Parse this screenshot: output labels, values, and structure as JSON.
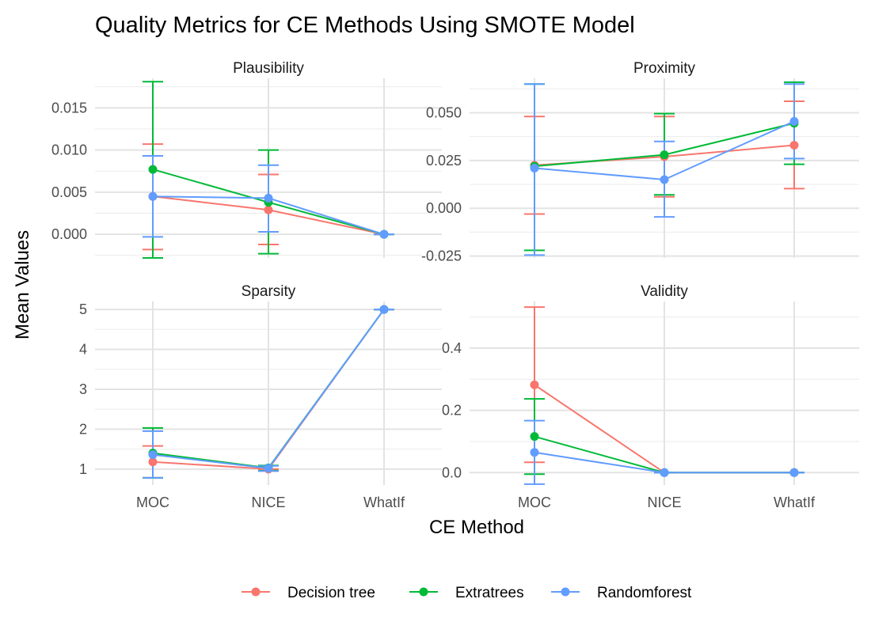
{
  "chart_data": {
    "type": "line",
    "title": "Quality Metrics for CE Methods Using SMOTE Model",
    "xlabel": "CE Method",
    "ylabel": "Mean Values",
    "categories": [
      "MOC",
      "NICE",
      "WhatIf"
    ],
    "legend_position": "bottom",
    "grid": true,
    "series_meta": [
      {
        "name": "Decision tree",
        "color": "#F8766D"
      },
      {
        "name": "Extratrees",
        "color": "#00BA38"
      },
      {
        "name": "Randomforest",
        "color": "#619CFF"
      }
    ],
    "panels": [
      {
        "title": "Plausibility",
        "ylim": [
          -0.0028,
          0.0185
        ],
        "ticks": [
          0.0,
          0.005,
          0.01,
          0.015
        ],
        "tick_labels": [
          "0.000",
          "0.005",
          "0.010",
          "0.015"
        ],
        "series": [
          {
            "name": "Decision tree",
            "values": [
              0.0045,
              0.0029,
              0.0
            ],
            "err_low": [
              -0.0018,
              -0.0012,
              0.0
            ],
            "err_high": [
              0.0107,
              0.0071,
              0.0
            ]
          },
          {
            "name": "Extratrees",
            "values": [
              0.0077,
              0.0038,
              0.0
            ],
            "err_low": [
              -0.0028,
              -0.0023,
              0.0
            ],
            "err_high": [
              0.0181,
              0.01,
              0.0
            ]
          },
          {
            "name": "Randomforest",
            "values": [
              0.0045,
              0.0043,
              0.0
            ],
            "err_low": [
              -0.0003,
              0.0003,
              0.0
            ],
            "err_high": [
              0.0093,
              0.0082,
              0.0
            ]
          }
        ]
      },
      {
        "title": "Proximity",
        "ylim": [
          -0.026,
          0.068
        ],
        "ticks": [
          -0.025,
          0.0,
          0.025,
          0.05
        ],
        "tick_labels": [
          "-0.025",
          "0.000",
          "0.025",
          "0.050"
        ],
        "series": [
          {
            "name": "Decision tree",
            "values": [
              0.0225,
              0.027,
              0.033
            ],
            "err_low": [
              -0.003,
              0.006,
              0.0103
            ],
            "err_high": [
              0.048,
              0.048,
              0.056
            ]
          },
          {
            "name": "Extratrees",
            "values": [
              0.022,
              0.028,
              0.0445
            ],
            "err_low": [
              -0.022,
              0.007,
              0.023
            ],
            "err_high": [
              0.065,
              0.0495,
              0.066
            ]
          },
          {
            "name": "Randomforest",
            "values": [
              0.021,
              0.015,
              0.0455
            ],
            "err_low": [
              -0.0245,
              -0.0045,
              0.026
            ],
            "err_high": [
              0.065,
              0.035,
              0.065
            ]
          }
        ]
      },
      {
        "title": "Sparsity",
        "ylim": [
          0.6,
          5.2
        ],
        "ticks": [
          1,
          2,
          3,
          4,
          5
        ],
        "tick_labels": [
          "1",
          "2",
          "3",
          "4",
          "5"
        ],
        "series": [
          {
            "name": "Decision tree",
            "values": [
              1.18,
              1.0,
              5.0
            ],
            "err_low": [
              0.78,
              1.0,
              5.0
            ],
            "err_high": [
              1.58,
              1.0,
              5.0
            ]
          },
          {
            "name": "Extratrees",
            "values": [
              1.4,
              1.03,
              5.0
            ],
            "err_low": [
              0.78,
              0.96,
              5.0
            ],
            "err_high": [
              2.03,
              1.09,
              5.0
            ]
          },
          {
            "name": "Randomforest",
            "values": [
              1.36,
              1.02,
              5.0
            ],
            "err_low": [
              0.78,
              0.95,
              5.0
            ],
            "err_high": [
              1.95,
              1.08,
              5.0
            ]
          }
        ]
      },
      {
        "title": "Validity",
        "ylim": [
          -0.04,
          0.55
        ],
        "ticks": [
          0.0,
          0.2,
          0.4
        ],
        "tick_labels": [
          "0.0",
          "0.2",
          "0.4"
        ],
        "series": [
          {
            "name": "Decision tree",
            "values": [
              0.282,
              0.0,
              0.0
            ],
            "err_low": [
              0.033,
              0.0,
              0.0
            ],
            "err_high": [
              0.532,
              0.0,
              0.0
            ]
          },
          {
            "name": "Extratrees",
            "values": [
              0.116,
              0.0,
              0.0
            ],
            "err_low": [
              -0.005,
              0.0,
              0.0
            ],
            "err_high": [
              0.237,
              0.0,
              0.0
            ]
          },
          {
            "name": "Randomforest",
            "values": [
              0.065,
              0.0,
              0.0
            ],
            "err_low": [
              -0.037,
              0.0,
              0.0
            ],
            "err_high": [
              0.167,
              0.0,
              0.0
            ]
          }
        ]
      }
    ]
  }
}
